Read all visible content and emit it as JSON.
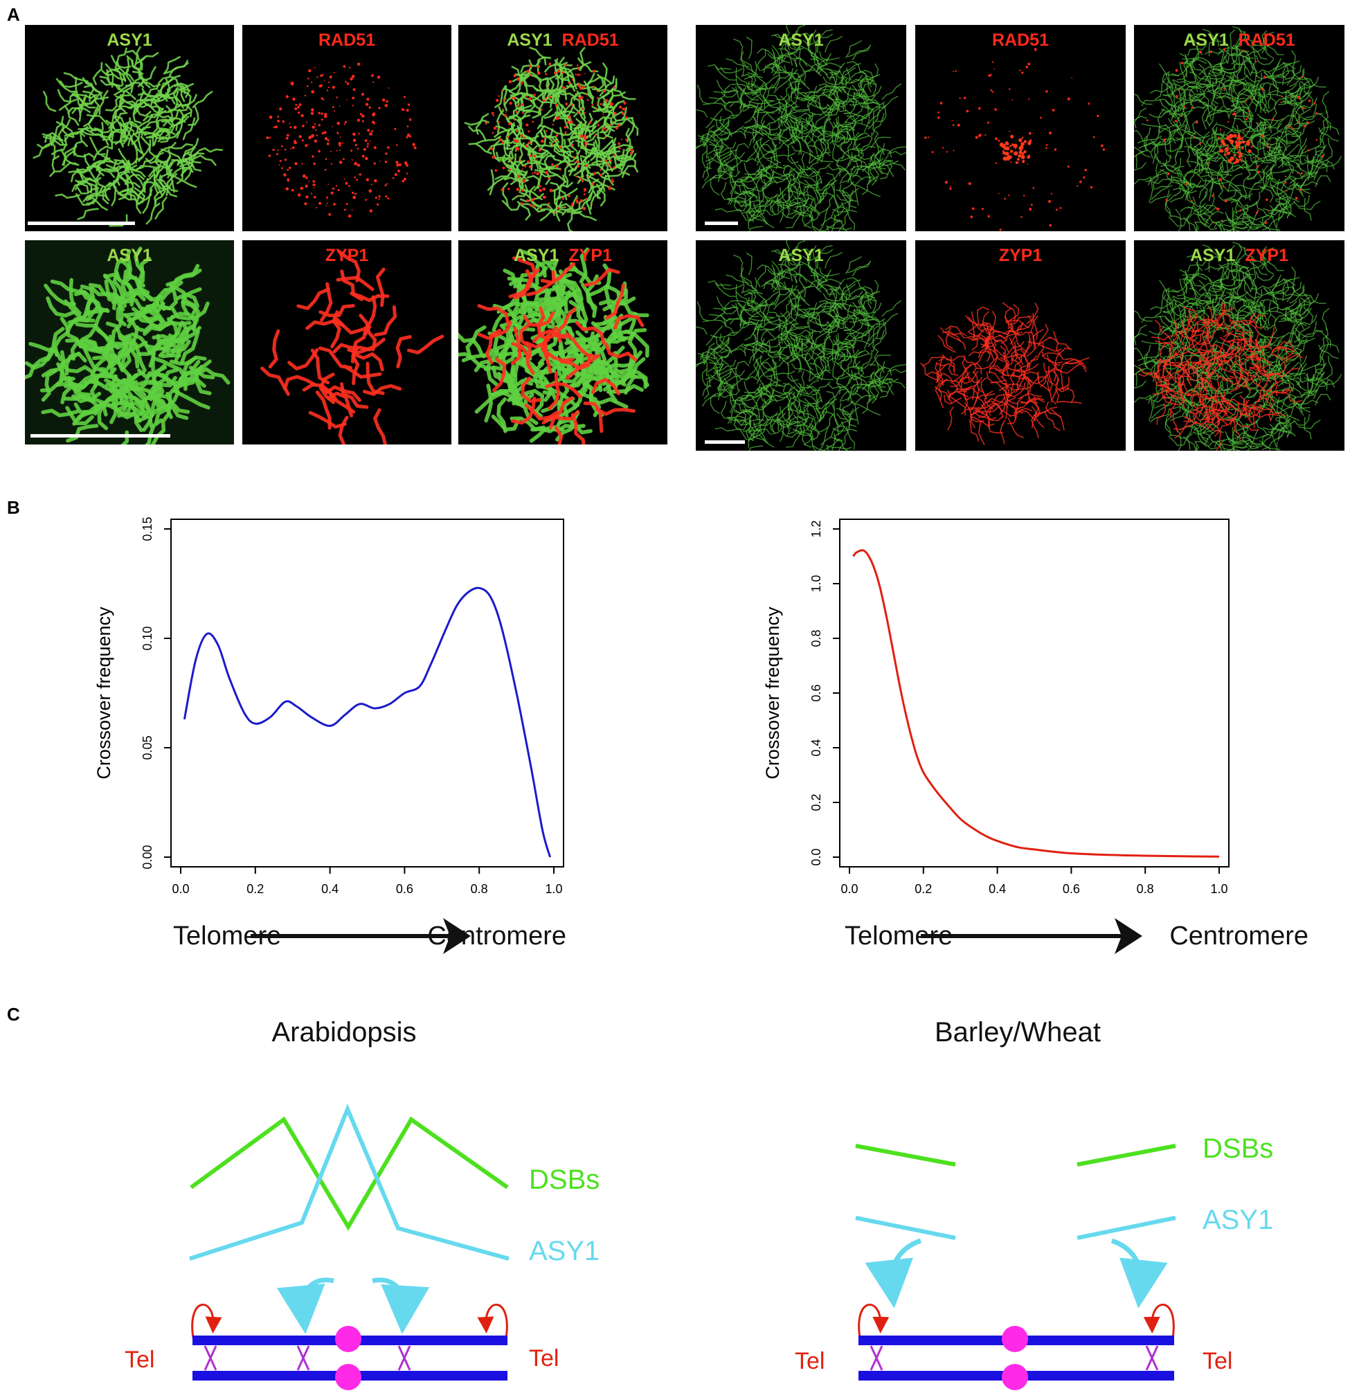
{
  "panel_labels": {
    "a": "A",
    "b": "B",
    "c": "C"
  },
  "micrographs": {
    "left_top": [
      {
        "label_green": "ASY1",
        "label_red": ""
      },
      {
        "label_green": "",
        "label_red": "RAD51"
      },
      {
        "label_green": "ASY1",
        "label_red": "RAD51"
      }
    ],
    "left_bottom": [
      {
        "label_green": "ASY1",
        "label_red": ""
      },
      {
        "label_green": "",
        "label_red": "ZYP1"
      },
      {
        "label_green": "ASY1",
        "label_red": "ZYP1"
      }
    ],
    "right_top": [
      {
        "label_green": "ASY1",
        "label_red": ""
      },
      {
        "label_green": "",
        "label_red": "RAD51"
      },
      {
        "label_green": "ASY1",
        "label_red": "RAD51"
      }
    ],
    "right_bottom": [
      {
        "label_green": "ASY1",
        "label_red": ""
      },
      {
        "label_green": "",
        "label_red": "ZYP1"
      },
      {
        "label_green": "ASY1",
        "label_red": "ZYP1"
      }
    ]
  },
  "chart_data": [
    {
      "type": "line",
      "ylabel": "Crossover frequency",
      "xlim": [
        0,
        1
      ],
      "ylim": [
        0,
        0.15
      ],
      "xticks": [
        "0.0",
        "0.2",
        "0.4",
        "0.6",
        "0.8",
        "1.0"
      ],
      "yticks": [
        "0.00",
        "0.05",
        "0.10",
        "0.15"
      ],
      "grid": false,
      "color": "#1a1acc",
      "x": [
        0.01,
        0.04,
        0.07,
        0.1,
        0.13,
        0.17,
        0.2,
        0.24,
        0.28,
        0.31,
        0.35,
        0.4,
        0.44,
        0.48,
        0.52,
        0.56,
        0.6,
        0.64,
        0.67,
        0.71,
        0.74,
        0.77,
        0.8,
        0.83,
        0.86,
        0.9,
        0.94,
        0.97,
        0.99
      ],
      "y": [
        0.063,
        0.09,
        0.102,
        0.097,
        0.082,
        0.066,
        0.061,
        0.064,
        0.071,
        0.069,
        0.064,
        0.06,
        0.065,
        0.07,
        0.068,
        0.07,
        0.075,
        0.078,
        0.088,
        0.104,
        0.115,
        0.121,
        0.123,
        0.119,
        0.105,
        0.075,
        0.04,
        0.012,
        0.0
      ],
      "axis_caption_left": "Telomere",
      "axis_caption_right": "Centromere"
    },
    {
      "type": "line",
      "ylabel": "Crossover frequency",
      "xlim": [
        0,
        1
      ],
      "ylim": [
        0,
        1.2
      ],
      "xticks": [
        "0.0",
        "0.2",
        "0.4",
        "0.6",
        "0.8",
        "1.0"
      ],
      "yticks": [
        "0.0",
        "0.2",
        "0.4",
        "0.6",
        "0.8",
        "1.0",
        "1.2"
      ],
      "grid": false,
      "color": "#e02010",
      "x": [
        0.01,
        0.02,
        0.04,
        0.06,
        0.08,
        0.1,
        0.12,
        0.14,
        0.16,
        0.18,
        0.2,
        0.23,
        0.26,
        0.3,
        0.34,
        0.38,
        0.42,
        0.46,
        0.5,
        0.55,
        0.6,
        0.7,
        0.8,
        0.9,
        1.0
      ],
      "y": [
        1.1,
        1.115,
        1.12,
        1.08,
        1.0,
        0.88,
        0.74,
        0.6,
        0.48,
        0.38,
        0.31,
        0.25,
        0.2,
        0.14,
        0.1,
        0.07,
        0.05,
        0.035,
        0.028,
        0.02,
        0.014,
        0.008,
        0.005,
        0.003,
        0.002
      ],
      "axis_caption_left": "Telomere",
      "axis_caption_right": "Centromere"
    }
  ],
  "diagrams": {
    "left": {
      "title": "Arabidopsis",
      "dsb_label": "DSBs",
      "asy1_label": "ASY1",
      "tel_left": "Tel",
      "tel_right": "Tel"
    },
    "right": {
      "title": "Barley/Wheat",
      "dsb_label": "DSBs",
      "asy1_label": "ASY1",
      "tel_left": "Tel",
      "tel_right": "Tel"
    },
    "colors": {
      "dsb": "#4de01f",
      "asy1": "#66d9ee",
      "chromosome": "#1a10e0",
      "centromere": "#ff2ae8",
      "crossover": "#b030d0",
      "arc": "#e02010",
      "tel": "#e02010"
    }
  }
}
